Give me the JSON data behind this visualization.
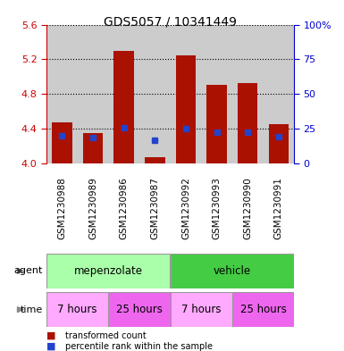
{
  "title": "GDS5057 / 10341449",
  "samples": [
    "GSM1230988",
    "GSM1230989",
    "GSM1230986",
    "GSM1230987",
    "GSM1230992",
    "GSM1230993",
    "GSM1230990",
    "GSM1230991"
  ],
  "red_bar_tops": [
    4.47,
    4.35,
    5.3,
    4.07,
    5.24,
    4.9,
    4.92,
    4.45
  ],
  "red_bar_bottoms": [
    4.0,
    4.0,
    4.0,
    4.0,
    4.0,
    4.0,
    4.0,
    4.0
  ],
  "blue_marker_vals": [
    4.315,
    4.295,
    4.41,
    4.27,
    4.4,
    4.355,
    4.355,
    4.305
  ],
  "ylim": [
    4.0,
    5.6
  ],
  "yticks_left": [
    4.0,
    4.4,
    4.8,
    5.2,
    5.6
  ],
  "yticks_right": [
    0,
    25,
    50,
    75,
    100
  ],
  "y_right_labels": [
    "0",
    "25",
    "50",
    "75",
    "100%"
  ],
  "left_axis_color": "#cc0000",
  "right_axis_color": "#0000cc",
  "agent_labels": [
    "mepenzolate",
    "vehicle"
  ],
  "time_labels": [
    "7 hours",
    "25 hours",
    "7 hours",
    "25 hours"
  ],
  "agent_light_color": "#aaffaa",
  "agent_dark_color": "#44cc44",
  "time_light_color": "#ffaaff",
  "time_dark_color": "#ee66ee",
  "bar_color": "#aa1100",
  "blue_color": "#2244cc",
  "bg_color": "#cccccc",
  "sample_panel_color": "#cccccc",
  "legend_red": "transformed count",
  "legend_blue": "percentile rank within the sample",
  "arrow_color": "#888888",
  "border_color": "#999999"
}
